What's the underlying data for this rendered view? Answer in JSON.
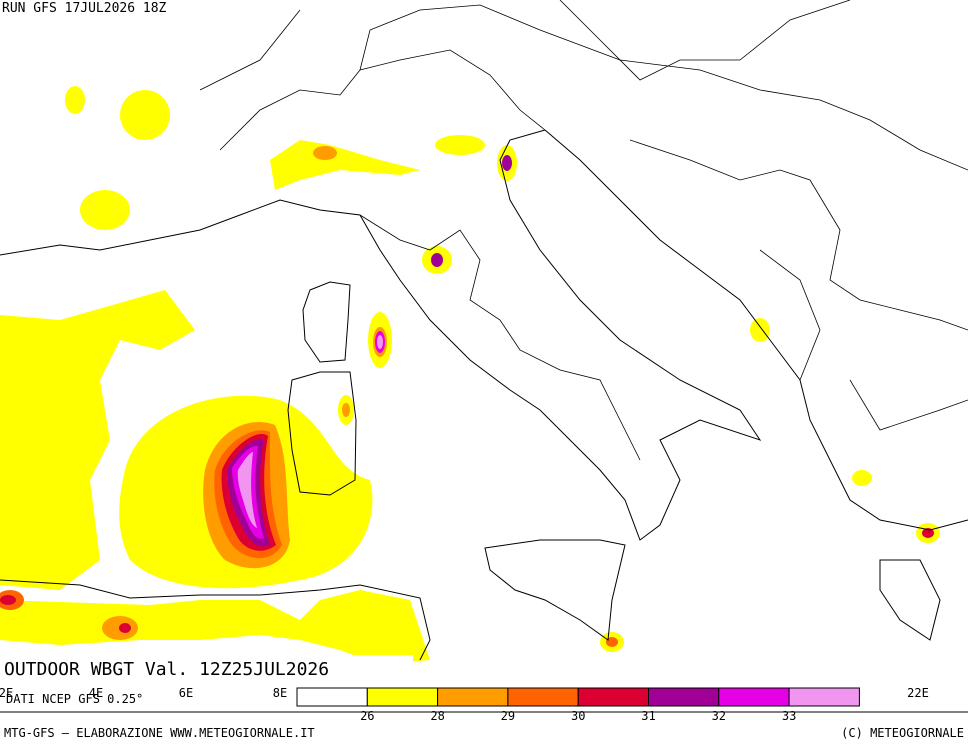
{
  "header": {
    "run": "RUN GFS 17JUL2026 18Z"
  },
  "title": "OUTDOOR WBGT Val. 12Z25JUL2026",
  "source": "DATI NCEP GFS 0.25°",
  "longitudes": [
    "2E",
    "4E",
    "6E",
    "8E",
    "22E"
  ],
  "legend": {
    "colors": [
      "#ffffff",
      "#ffff00",
      "#ff9c00",
      "#ff6400",
      "#dc0032",
      "#a00096",
      "#e600e6",
      "#f096f0"
    ],
    "ticks": [
      26,
      28,
      29,
      30,
      31,
      32,
      33
    ]
  },
  "footer": {
    "left": "MTG-GFS — ELABORAZIONE WWW.METEOGIORNALE.IT",
    "right": "(C) METEOGIORNALE"
  }
}
